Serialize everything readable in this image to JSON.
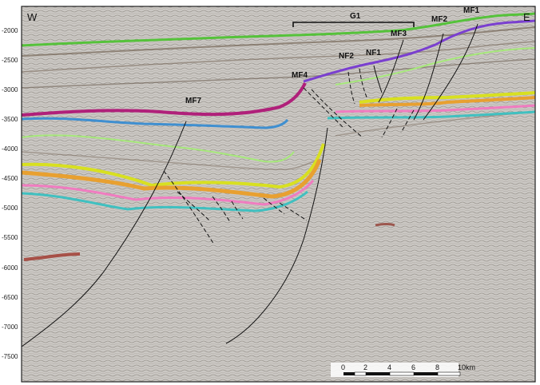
{
  "corners": {
    "west": "W",
    "east": "E"
  },
  "depth_ticks": [
    "-2000",
    "-2500",
    "-3000",
    "-3500",
    "-4000",
    "-4500",
    "-5000",
    "-5500",
    "-6000",
    "-6500",
    "-7000",
    "-7500"
  ],
  "fault_labels": {
    "mf1": "MF1",
    "mf2": "MF2",
    "mf3": "MF3",
    "mf4": "MF4",
    "mf7": "MF7",
    "nf1": "NF1",
    "nf2": "NF2"
  },
  "segment_label": "G1",
  "scale_bar": {
    "labels": [
      "0",
      "2",
      "4",
      "6",
      "8"
    ],
    "unit_label": "10km"
  },
  "colors": {
    "background": "#c9c6c2",
    "frame": "#222222",
    "green_horizon": "#55c23a",
    "magenta_horizon": "#b0207a",
    "purple_horizon": "#7a3fd0",
    "blue_horizon": "#3f8fd0",
    "light_green_horizon": "#a6e87a",
    "yellow_horizon": "#d8e020",
    "orange_horizon": "#e8a030",
    "pink_horizon": "#f07cc0",
    "teal_horizon": "#40c0c0",
    "fault_line": "#111111"
  }
}
